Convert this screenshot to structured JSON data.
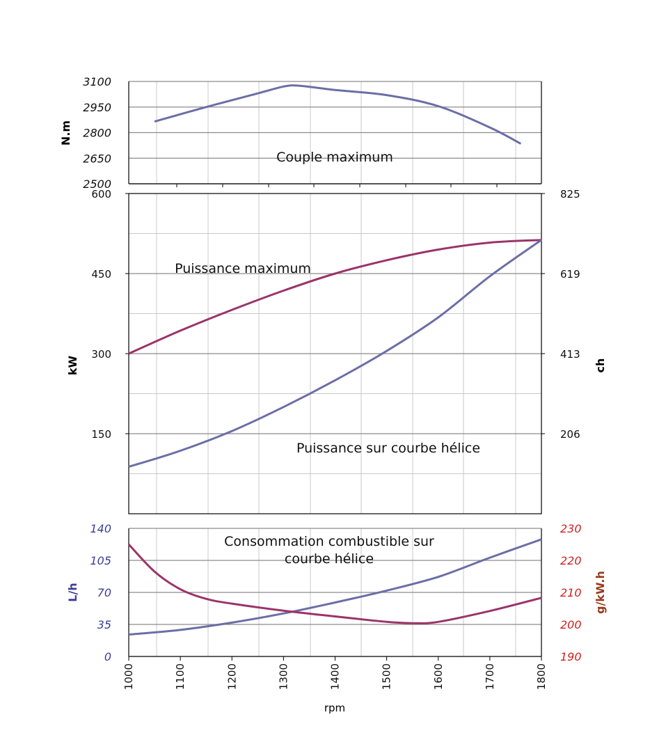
{
  "chart_data": [
    {
      "type": "line",
      "panel": "torque",
      "annotation": "Couple maximum",
      "ylabel": "N.m",
      "ylim": [
        2500,
        3100
      ],
      "yticks": [
        "3100",
        "2950",
        "2800",
        "2650",
        "2500"
      ],
      "xlim": [
        1000,
        1800
      ],
      "grid": true,
      "series": [
        {
          "color": "#6b6ea6",
          "x": [
            1050,
            1150,
            1250,
            1300,
            1330,
            1400,
            1500,
            1600,
            1700,
            1760
          ],
          "y": [
            2865,
            2950,
            3030,
            3070,
            3075,
            3050,
            3020,
            2955,
            2830,
            2735
          ]
        }
      ]
    },
    {
      "type": "line",
      "panel": "power",
      "ylabel": "kW",
      "ylabel_right": "ch",
      "ylim": [
        0,
        600
      ],
      "yticks": [
        "600",
        "450",
        "300",
        "150"
      ],
      "yticks_right": [
        "825",
        "619",
        "413",
        "206"
      ],
      "xlim": [
        1000,
        1800
      ],
      "grid": true,
      "series": [
        {
          "annotation": "Puissance maximum",
          "color": "#9b3469",
          "x": [
            1000,
            1100,
            1200,
            1300,
            1400,
            1500,
            1600,
            1700,
            1800
          ],
          "y": [
            300,
            343,
            382,
            418,
            450,
            475,
            495,
            508,
            513
          ]
        },
        {
          "annotation": "Puissance sur courbe hélice",
          "color": "#6b6ea6",
          "x": [
            1000,
            1100,
            1200,
            1300,
            1400,
            1500,
            1600,
            1700,
            1800
          ],
          "y": [
            88,
            118,
            155,
            200,
            250,
            305,
            368,
            445,
            513
          ]
        }
      ]
    },
    {
      "type": "line",
      "panel": "consumption",
      "annotation": "Consommation combustible sur courbe hélice",
      "annotation_lines": [
        "Consommation combustible sur",
        "courbe hélice"
      ],
      "ylabel": "L/h",
      "ylabel_color": "#3c3c9a",
      "ylabel_right": "g/kW.h",
      "ylabel_right_color": "#9a3c1e",
      "ylim": [
        0,
        140
      ],
      "yticks": [
        "140",
        "105",
        "70",
        "35",
        "0"
      ],
      "ylim_right": [
        190,
        230
      ],
      "yticks_right": [
        "230",
        "220",
        "210",
        "200",
        "190"
      ],
      "yticks_color": "#3c3c9a",
      "yticks_right_color": "#cc2222",
      "xlabel": "rpm",
      "xlim": [
        1000,
        1800
      ],
      "xticks": [
        "1000",
        "1100",
        "1200",
        "1300",
        "1400",
        "1500",
        "1600",
        "1700",
        "1800"
      ],
      "grid": true,
      "series": [
        {
          "axis": "left",
          "color": "#6b6ea6",
          "x": [
            1000,
            1100,
            1200,
            1300,
            1400,
            1500,
            1600,
            1700,
            1800
          ],
          "y": [
            24,
            29,
            37,
            47,
            59,
            72,
            87,
            108,
            128
          ]
        },
        {
          "axis": "right",
          "color": "#9b3469",
          "x": [
            1000,
            1050,
            1100,
            1150,
            1200,
            1300,
            1400,
            1500,
            1550,
            1600,
            1700,
            1800
          ],
          "y": [
            225,
            216.5,
            211,
            208,
            206.5,
            204.3,
            202.5,
            200.8,
            200.4,
            200.8,
            204.2,
            208.3
          ]
        }
      ]
    }
  ]
}
